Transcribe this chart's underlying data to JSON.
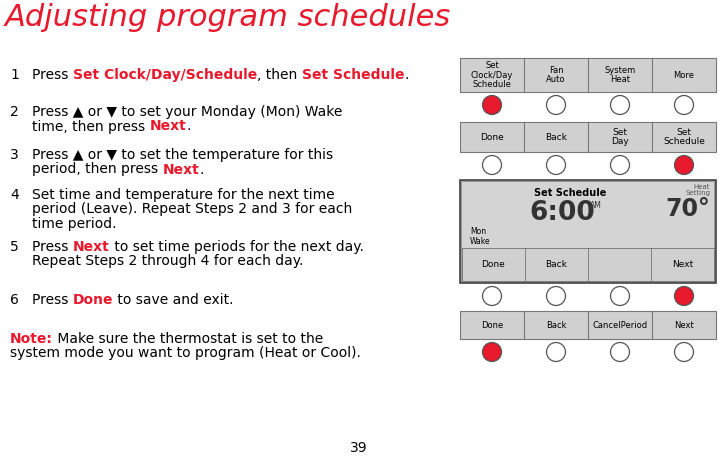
{
  "title": "Adjusting program schedules",
  "title_color": "#e8192c",
  "bg_color": "#ffffff",
  "red_button": "#e8192c",
  "panel_bg": "#d0d0d0",
  "panel_border": "#888888",
  "screen1_labels": [
    "Set\nClock/Day\nSchedule",
    "Fan\nAuto",
    "System\nHeat",
    "More"
  ],
  "screen1_buttons": [
    "red",
    "white",
    "white",
    "white"
  ],
  "screen2_labels": [
    "Done",
    "Back",
    "Set\nDay",
    "Set\nSchedule"
  ],
  "screen2_buttons": [
    "white",
    "white",
    "white",
    "red"
  ],
  "screen3_title": "Set Schedule",
  "screen3_time": "6:00",
  "screen3_ampm": "AM",
  "screen3_heat_label": "Heat\nSetting",
  "screen3_temp": "70*",
  "screen3_period": "Mon\nWake",
  "screen3_labels": [
    "Done",
    "Back",
    "",
    "Next"
  ],
  "screen3_buttons": [
    "white",
    "white",
    "white",
    "red"
  ],
  "screen4_labels": [
    "Done",
    "Back",
    "CancelPeriod",
    "Next"
  ],
  "screen4_buttons": [
    "red",
    "white",
    "white",
    "white"
  ],
  "page_number": "39"
}
